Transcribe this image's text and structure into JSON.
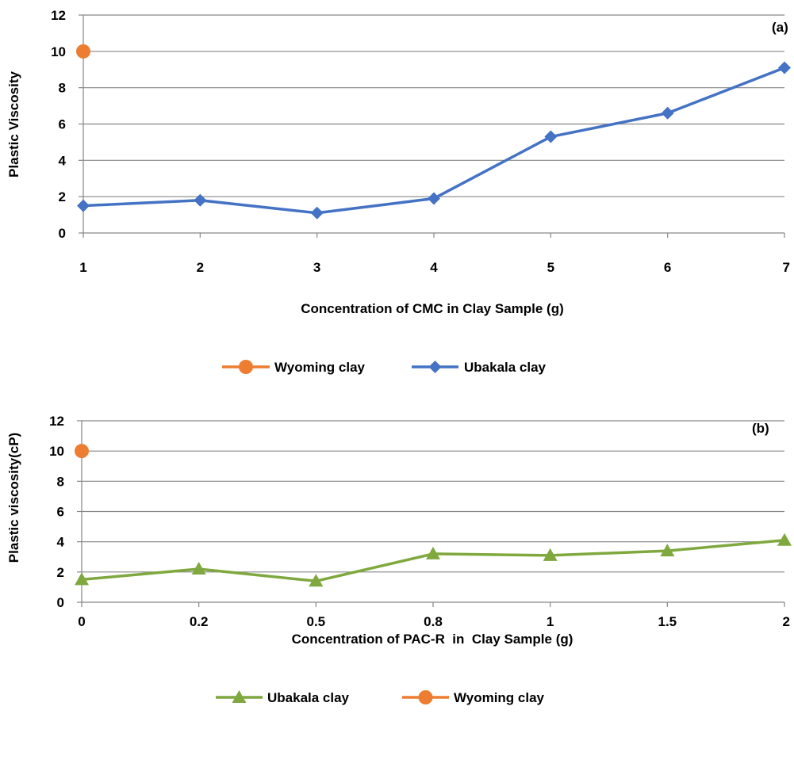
{
  "chart_data": [
    {
      "type": "line",
      "panel_label": "(a)",
      "xlabel": "Concentration of CMC in Clay Sample (g)",
      "ylabel": "Plastic Viscosity",
      "categories": [
        "1",
        "2",
        "3",
        "4",
        "5",
        "6",
        "7"
      ],
      "ylim": [
        0,
        12
      ],
      "yticks": [
        0,
        2,
        4,
        6,
        8,
        10,
        12
      ],
      "grid": true,
      "legend_position": "bottom",
      "series": [
        {
          "name": "Wyoming clay",
          "values": [
            10,
            null,
            null,
            null,
            null,
            null,
            null
          ],
          "color": "#ED7D31",
          "marker": "circle"
        },
        {
          "name": "Ubakala clay",
          "values": [
            1.5,
            1.8,
            1.1,
            1.9,
            5.3,
            6.6,
            9.1
          ],
          "color": "#4472C4",
          "marker": "diamond"
        }
      ]
    },
    {
      "type": "line",
      "panel_label": "(b)",
      "xlabel": "Concentration of PAC-R  in  Clay Sample (g)",
      "ylabel": "Plastic viscosity(cP)",
      "categories": [
        "0",
        "0.2",
        "0.5",
        "0.8",
        "1",
        "1.5",
        "2"
      ],
      "ylim": [
        0,
        12
      ],
      "yticks": [
        0,
        2,
        4,
        6,
        8,
        10,
        12
      ],
      "grid": true,
      "legend_position": "bottom",
      "series": [
        {
          "name": "Ubakala clay",
          "values": [
            1.5,
            2.2,
            1.4,
            3.2,
            3.1,
            3.4,
            4.1
          ],
          "color": "#7FA83E",
          "marker": "triangle"
        },
        {
          "name": "Wyoming clay",
          "values": [
            10,
            null,
            null,
            null,
            null,
            null,
            null
          ],
          "color": "#ED7D31",
          "marker": "circle"
        }
      ]
    }
  ]
}
